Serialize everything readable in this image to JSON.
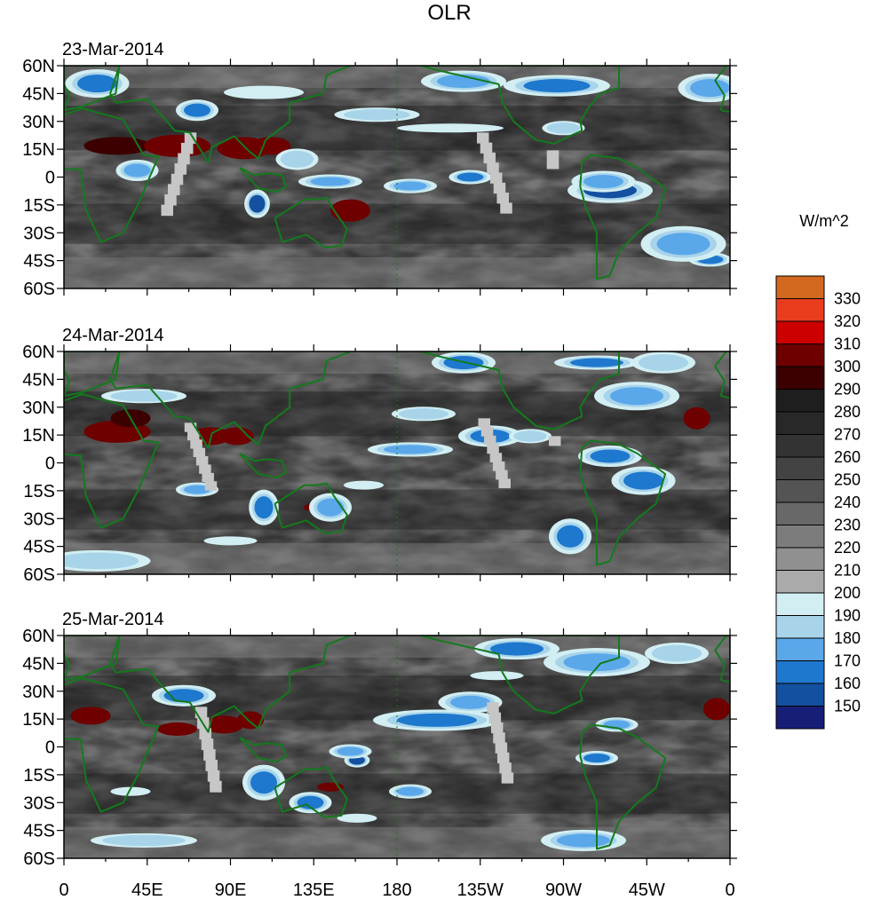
{
  "title": "OLR",
  "units": "W/m^2",
  "lat_labels": [
    "60N",
    "45N",
    "30N",
    "15N",
    "0",
    "15S",
    "30S",
    "45S",
    "60S"
  ],
  "lon_labels": [
    "0",
    "45E",
    "90E",
    "135E",
    "180",
    "135W",
    "90W",
    "45W",
    "0"
  ],
  "panels": [
    {
      "date": "23-Mar-2014"
    },
    {
      "date": "24-Mar-2014"
    },
    {
      "date": "25-Mar-2014"
    }
  ],
  "colorbar": {
    "labels": [
      "330",
      "320",
      "310",
      "300",
      "290",
      "280",
      "270",
      "260",
      "250",
      "240",
      "230",
      "220",
      "210",
      "200",
      "190",
      "180",
      "170",
      "160",
      "150"
    ],
    "colors": [
      "#d2691e",
      "#ea3d1e",
      "#cd0000",
      "#6e0000",
      "#3c0000",
      "#1e1e1e",
      "#282828",
      "#333333",
      "#434343",
      "#545454",
      "#686868",
      "#7c7c7c",
      "#909090",
      "#aaaaaa",
      "#d2eef2",
      "#a8d4ea",
      "#5aa8ea",
      "#1e78cd",
      "#1450a0",
      "#161e78"
    ]
  },
  "map_colors": {
    "coastline": "#137a1c",
    "missing": "#c6c6c6"
  }
}
